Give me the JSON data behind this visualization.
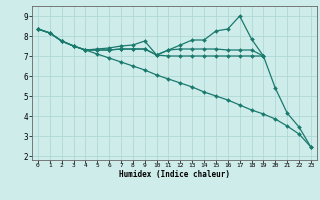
{
  "xlabel": "Humidex (Indice chaleur)",
  "xlim": [
    -0.5,
    23.5
  ],
  "ylim": [
    1.8,
    9.5
  ],
  "bg_color": "#ceecea",
  "line_color": "#1a7a6e",
  "grid_color": "#b0d8d5",
  "lines": [
    {
      "x": [
        0,
        1,
        2,
        3,
        4,
        5,
        6,
        7,
        8,
        9,
        10,
        11,
        12,
        13,
        14,
        15,
        16,
        17,
        18,
        19
      ],
      "y": [
        8.35,
        8.15,
        7.75,
        7.5,
        7.3,
        7.3,
        7.3,
        7.35,
        7.35,
        7.35,
        7.05,
        7.3,
        7.35,
        7.35,
        7.35,
        7.35,
        7.3,
        7.3,
        7.3,
        7.0
      ]
    },
    {
      "x": [
        0,
        1,
        2,
        3,
        4,
        5,
        6,
        7,
        8,
        9,
        10,
        11,
        12,
        13,
        14,
        15,
        16,
        17,
        18,
        19,
        20,
        21,
        22,
        23
      ],
      "y": [
        8.35,
        8.15,
        7.75,
        7.5,
        7.3,
        7.35,
        7.4,
        7.5,
        7.55,
        7.75,
        7.05,
        7.3,
        7.55,
        7.8,
        7.8,
        8.25,
        8.35,
        9.0,
        7.85,
        7.0,
        5.4,
        4.15,
        3.45,
        2.45
      ]
    },
    {
      "x": [
        0,
        1,
        2,
        3,
        4,
        5,
        6,
        7,
        8,
        9,
        10,
        11,
        12,
        13,
        14,
        15,
        16,
        17,
        18,
        19,
        20,
        21,
        22,
        23
      ],
      "y": [
        8.35,
        8.15,
        7.75,
        7.5,
        7.3,
        7.1,
        6.9,
        6.7,
        6.5,
        6.3,
        6.05,
        5.85,
        5.65,
        5.45,
        5.2,
        5.0,
        4.8,
        4.55,
        4.3,
        4.1,
        3.85,
        3.5,
        3.1,
        2.45
      ]
    },
    {
      "x": [
        0,
        1,
        2,
        3,
        4,
        5,
        6,
        7,
        8,
        9,
        10,
        11,
        12,
        13,
        14,
        15,
        16,
        17,
        18,
        19
      ],
      "y": [
        8.35,
        8.15,
        7.75,
        7.5,
        7.3,
        7.3,
        7.3,
        7.35,
        7.35,
        7.35,
        7.05,
        7.0,
        7.0,
        7.0,
        7.0,
        7.0,
        7.0,
        7.0,
        7.0,
        7.0
      ]
    }
  ],
  "xticks": [
    0,
    1,
    2,
    3,
    4,
    5,
    6,
    7,
    8,
    9,
    10,
    11,
    12,
    13,
    14,
    15,
    16,
    17,
    18,
    19,
    20,
    21,
    22,
    23
  ],
  "yticks": [
    2,
    3,
    4,
    5,
    6,
    7,
    8,
    9
  ],
  "marker": "D",
  "markersize": 2.0,
  "linewidth": 0.9
}
